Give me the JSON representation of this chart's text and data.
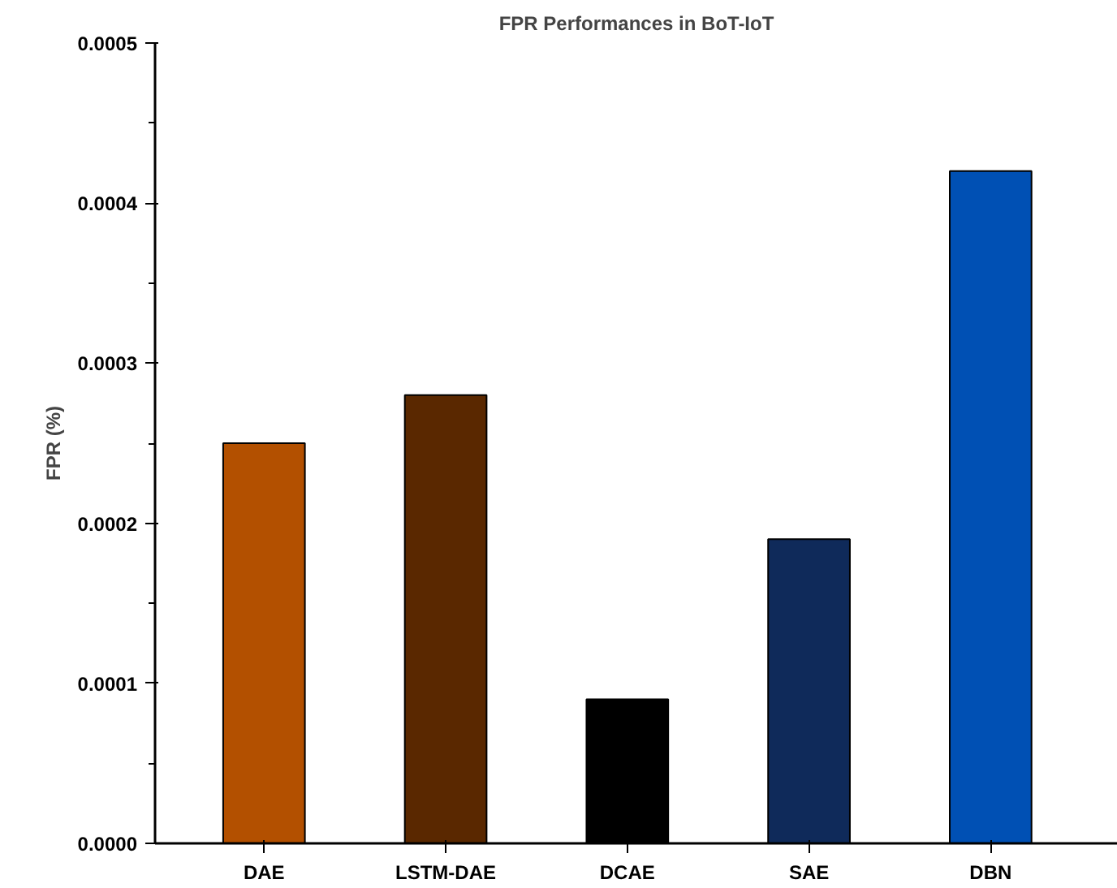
{
  "chart_data": {
    "type": "bar",
    "title": "FPR Performances in BoT-IoT",
    "ylabel": "FPR (%)",
    "categories": [
      "DAE",
      "LSTM-DAE",
      "DCAE",
      "SAE",
      "DBN"
    ],
    "values": [
      0.00025,
      0.00028,
      9e-05,
      0.00019,
      0.00042
    ],
    "colors": [
      "#b35000",
      "#5a2800",
      "#000000",
      "#0f2a5a",
      "#0050b4"
    ],
    "ylim": [
      0,
      0.0005
    ],
    "yticks": [
      {
        "value": 0,
        "label": "0.0000"
      },
      {
        "value": 0.0001,
        "label": "0.0001"
      },
      {
        "value": 0.0002,
        "label": "0.0002"
      },
      {
        "value": 0.0003,
        "label": "0.0003"
      },
      {
        "value": 0.0004,
        "label": "0.0004"
      },
      {
        "value": 0.0005,
        "label": "0.0005"
      }
    ],
    "grid": false
  }
}
